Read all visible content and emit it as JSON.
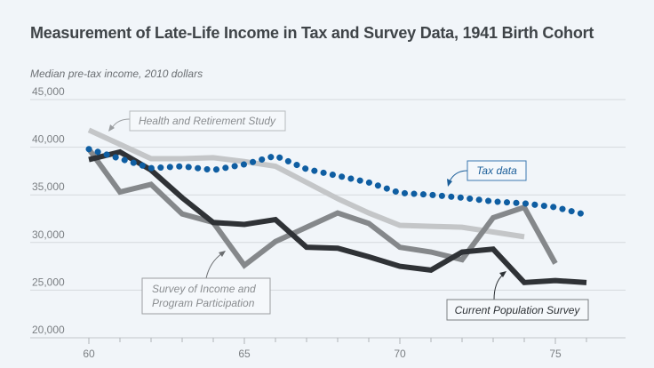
{
  "chart_data": {
    "type": "line",
    "title": "Measurement of Late-Life Income in Tax and Survey Data, 1941 Birth Cohort",
    "ylabel": "Median pre-tax income, 2010 dollars",
    "xlabel": "",
    "xlim": [
      59,
      77
    ],
    "ylim": [
      20000,
      45000
    ],
    "x_ticks": [
      60,
      65,
      70,
      75
    ],
    "x_minor_ticks": [
      60,
      61,
      62,
      63,
      64,
      65,
      66,
      67,
      68,
      69,
      70,
      71,
      72,
      73,
      74,
      75,
      76
    ],
    "y_ticks": [
      20000,
      25000,
      30000,
      35000,
      40000,
      45000
    ],
    "y_tick_labels": [
      "20,000",
      "25,000",
      "30,000",
      "35,000",
      "40,000",
      "45,000"
    ],
    "grid": true,
    "series": [
      {
        "name": "Health and Retirement Study",
        "style": "solid",
        "color": "#c4c6c8",
        "x": [
          60,
          61,
          62,
          63,
          64,
          65,
          66,
          67,
          68,
          69,
          70,
          71,
          72,
          73,
          74
        ],
        "values": [
          41800,
          40300,
          38800,
          38800,
          38900,
          38500,
          38000,
          36300,
          34600,
          33100,
          31800,
          31700,
          31600,
          31100,
          30600
        ]
      },
      {
        "name": "Survey of Income and Program Participation",
        "style": "solid",
        "color": "#85888b",
        "x": [
          60,
          61,
          62,
          63,
          64,
          65,
          66,
          67,
          68,
          69,
          70,
          71,
          72,
          73,
          74,
          75
        ],
        "values": [
          39800,
          35300,
          36100,
          33000,
          32100,
          27600,
          30100,
          31600,
          33100,
          32000,
          29500,
          29000,
          28200,
          32600,
          33700,
          27800
        ]
      },
      {
        "name": "Current Population Survey",
        "style": "solid",
        "color": "#2f3236",
        "x": [
          60,
          61,
          62,
          63,
          64,
          65,
          66,
          67,
          68,
          69,
          70,
          71,
          72,
          73,
          74,
          75,
          76
        ],
        "values": [
          38700,
          39500,
          37600,
          34700,
          32100,
          31900,
          32400,
          29500,
          29400,
          28500,
          27500,
          27100,
          29000,
          29300,
          25800,
          26000,
          25800
        ]
      },
      {
        "name": "Tax data",
        "style": "dotted",
        "color": "#0f5ea2",
        "x": [
          60,
          61,
          62,
          63,
          64,
          65,
          66,
          67,
          68,
          69,
          70,
          71,
          72,
          73,
          74,
          75,
          76
        ],
        "values": [
          39800,
          38800,
          37800,
          38000,
          37600,
          38200,
          39100,
          37700,
          37000,
          36300,
          35200,
          35000,
          34700,
          34300,
          34100,
          33700,
          32900
        ]
      }
    ],
    "annotations": [
      {
        "text": "Health and Retirement Study",
        "series": "Health and Retirement Study"
      },
      {
        "text": "Tax data",
        "series": "Tax data"
      },
      {
        "text": "Survey of Income and",
        "text2": "Program Participation",
        "series": "Survey of Income and Program Participation"
      },
      {
        "text": "Current Population Survey",
        "series": "Current Population Survey"
      }
    ]
  }
}
